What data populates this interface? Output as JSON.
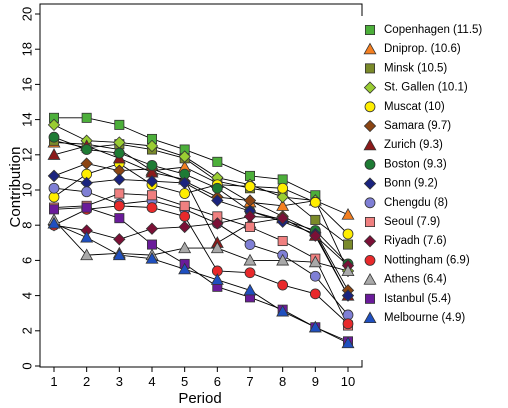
{
  "chart_data": {
    "type": "line",
    "title": "",
    "xlabel": "Period",
    "ylabel": "Contribution",
    "xlim": [
      1,
      10
    ],
    "ylim": [
      0,
      20
    ],
    "xticks": [
      "1",
      "2",
      "3",
      "4",
      "5",
      "6",
      "7",
      "8",
      "9",
      "10"
    ],
    "yticks": [
      "0",
      "2",
      "4",
      "6",
      "8",
      "10",
      "12",
      "14",
      "16",
      "18",
      "20"
    ],
    "grid": false,
    "legend_position": "right",
    "x": [
      1,
      2,
      3,
      4,
      5,
      6,
      7,
      8,
      9,
      10
    ],
    "series": [
      {
        "name": "Copenhagen (11.5)",
        "marker": "square",
        "color": "#4caf3a",
        "values": [
          14.1,
          14.1,
          13.7,
          12.9,
          12.3,
          11.6,
          10.8,
          10.6,
          9.7,
          null
        ]
      },
      {
        "name": "Dniprop. (10.6)",
        "marker": "triangle-up",
        "color": "#f47f20",
        "values": [
          12.7,
          12.6,
          12.3,
          11.1,
          11.3,
          10.4,
          9.3,
          9.1,
          9.4,
          8.6
        ]
      },
      {
        "name": "Minsk (10.5)",
        "marker": "square",
        "color": "#7a8a2a",
        "values": [
          12.8,
          12.4,
          12.6,
          12.3,
          11.8,
          10.5,
          10.1,
          9.8,
          8.3,
          6.9
        ]
      },
      {
        "name": "St. Gallen (10.1)",
        "marker": "diamond",
        "color": "#9acd32",
        "values": [
          13.7,
          12.8,
          12.7,
          12.5,
          11.9,
          10.7,
          10.3,
          9.6,
          9.4,
          5.4
        ]
      },
      {
        "name": "Muscat (10)",
        "marker": "circle",
        "color": "#ffee00",
        "values": [
          9.6,
          10.9,
          11.5,
          10.3,
          9.8,
          10.3,
          10.2,
          10.1,
          9.3,
          7.5
        ]
      },
      {
        "name": "Samara (9.7)",
        "marker": "diamond",
        "color": "#8b4513",
        "values": [
          10.8,
          11.5,
          11.1,
          11.2,
          10.5,
          9.6,
          9.4,
          8.5,
          7.6,
          4.3
        ]
      },
      {
        "name": "Zurich (9.3)",
        "marker": "triangle-up",
        "color": "#8b1a1a",
        "values": [
          12.0,
          12.5,
          11.8,
          11.0,
          10.6,
          7.0,
          8.1,
          8.4,
          7.4,
          4.0
        ]
      },
      {
        "name": "Boston (9.3)",
        "marker": "circle",
        "color": "#1e7b34",
        "values": [
          13.0,
          12.3,
          12.1,
          11.4,
          10.9,
          10.1,
          8.8,
          8.3,
          7.7,
          5.8
        ]
      },
      {
        "name": "Bonn (9.2)",
        "marker": "diamond",
        "color": "#1a237e",
        "values": [
          10.8,
          10.4,
          10.6,
          10.5,
          10.4,
          9.4,
          8.8,
          8.2,
          7.5,
          4.0
        ]
      },
      {
        "name": "Chengdu (8)",
        "marker": "circle",
        "color": "#7f7fd5",
        "values": [
          10.1,
          9.9,
          9.2,
          9.4,
          8.9,
          8.1,
          6.9,
          6.3,
          5.1,
          2.9
        ]
      },
      {
        "name": "Seoul (7.9)",
        "marker": "square",
        "color": "#f08080",
        "values": [
          9.0,
          9.1,
          9.8,
          9.7,
          9.1,
          8.5,
          7.9,
          7.1,
          6.1,
          2.3
        ]
      },
      {
        "name": "Riyadh (7.6)",
        "marker": "diamond",
        "color": "#7b1036",
        "values": [
          8.0,
          7.7,
          7.2,
          7.8,
          7.9,
          8.1,
          8.5,
          8.4,
          7.4,
          5.7
        ]
      },
      {
        "name": "Nottingham (6.9)",
        "marker": "circle",
        "color": "#e8292b",
        "values": [
          8.0,
          8.9,
          9.1,
          9.0,
          8.5,
          5.4,
          5.3,
          4.6,
          4.1,
          2.4
        ]
      },
      {
        "name": "Athens (6.4)",
        "marker": "triangle-up",
        "color": "#a9a9a9",
        "values": [
          8.3,
          6.3,
          6.4,
          6.3,
          6.7,
          6.7,
          6.0,
          6.0,
          5.9,
          5.4
        ]
      },
      {
        "name": "Istanbul (5.4)",
        "marker": "square",
        "color": "#6a1b9a",
        "values": [
          8.9,
          9.0,
          8.4,
          6.9,
          5.8,
          4.5,
          3.9,
          3.2,
          2.2,
          1.4
        ]
      },
      {
        "name": "Melbourne (4.9)",
        "marker": "triangle-up",
        "color": "#1f4fbf",
        "values": [
          8.1,
          7.3,
          6.3,
          6.1,
          5.5,
          4.9,
          4.3,
          3.1,
          2.2,
          1.3
        ]
      }
    ]
  }
}
